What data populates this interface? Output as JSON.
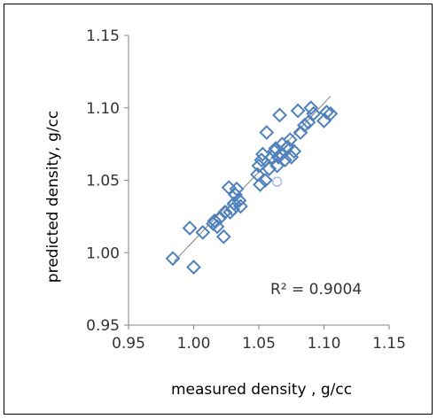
{
  "chart_data": {
    "type": "scatter",
    "xlabel": "measured density , g/cc",
    "ylabel": "predicted density, g/cc",
    "xlim": [
      0.95,
      1.15
    ],
    "ylim": [
      0.95,
      1.15
    ],
    "x_ticks": [
      "0.95",
      "1.00",
      "1.05",
      "1.10",
      "1.15"
    ],
    "y_ticks": [
      "0.95",
      "1.00",
      "1.05",
      "1.10",
      "1.15"
    ],
    "grid": false,
    "marker": "diamond",
    "marker_color": "#4F81BD",
    "trendline": {
      "type": "linear",
      "color": "#7f7f7f",
      "x": [
        0.985,
        1.105
      ],
      "y": [
        0.994,
        1.108
      ]
    },
    "annotation": "R² = 0.9004",
    "points": [
      [
        0.984,
        0.996
      ],
      [
        0.997,
        1.017
      ],
      [
        1.0,
        0.99
      ],
      [
        1.007,
        1.014
      ],
      [
        1.015,
        1.02
      ],
      [
        1.016,
        1.022
      ],
      [
        1.018,
        1.018
      ],
      [
        1.02,
        1.024
      ],
      [
        1.023,
        1.011
      ],
      [
        1.024,
        1.028
      ],
      [
        1.027,
        1.045
      ],
      [
        1.028,
        1.028
      ],
      [
        1.03,
        1.03
      ],
      [
        1.031,
        1.034
      ],
      [
        1.032,
        1.04
      ],
      [
        1.033,
        1.044
      ],
      [
        1.035,
        1.036
      ],
      [
        1.036,
        1.032
      ],
      [
        1.049,
        1.054
      ],
      [
        1.05,
        1.06
      ],
      [
        1.051,
        1.047
      ],
      [
        1.052,
        1.064
      ],
      [
        1.053,
        1.068
      ],
      [
        1.055,
        1.05
      ],
      [
        1.056,
        1.083
      ],
      [
        1.058,
        1.058
      ],
      [
        1.06,
        1.066
      ],
      [
        1.062,
        1.07
      ],
      [
        1.063,
        1.072
      ],
      [
        1.064,
        1.06
      ],
      [
        1.065,
        1.066
      ],
      [
        1.066,
        1.095
      ],
      [
        1.067,
        1.068
      ],
      [
        1.068,
        1.075
      ],
      [
        1.07,
        1.064
      ],
      [
        1.072,
        1.073
      ],
      [
        1.074,
        1.078
      ],
      [
        1.075,
        1.066
      ],
      [
        1.077,
        1.07
      ],
      [
        1.08,
        1.098
      ],
      [
        1.082,
        1.083
      ],
      [
        1.085,
        1.088
      ],
      [
        1.088,
        1.09
      ],
      [
        1.09,
        1.1
      ],
      [
        1.092,
        1.096
      ],
      [
        1.1,
        1.091
      ],
      [
        1.102,
        1.097
      ],
      [
        1.105,
        1.096
      ]
    ],
    "outlier_points": [
      [
        1.064,
        1.049
      ]
    ]
  }
}
